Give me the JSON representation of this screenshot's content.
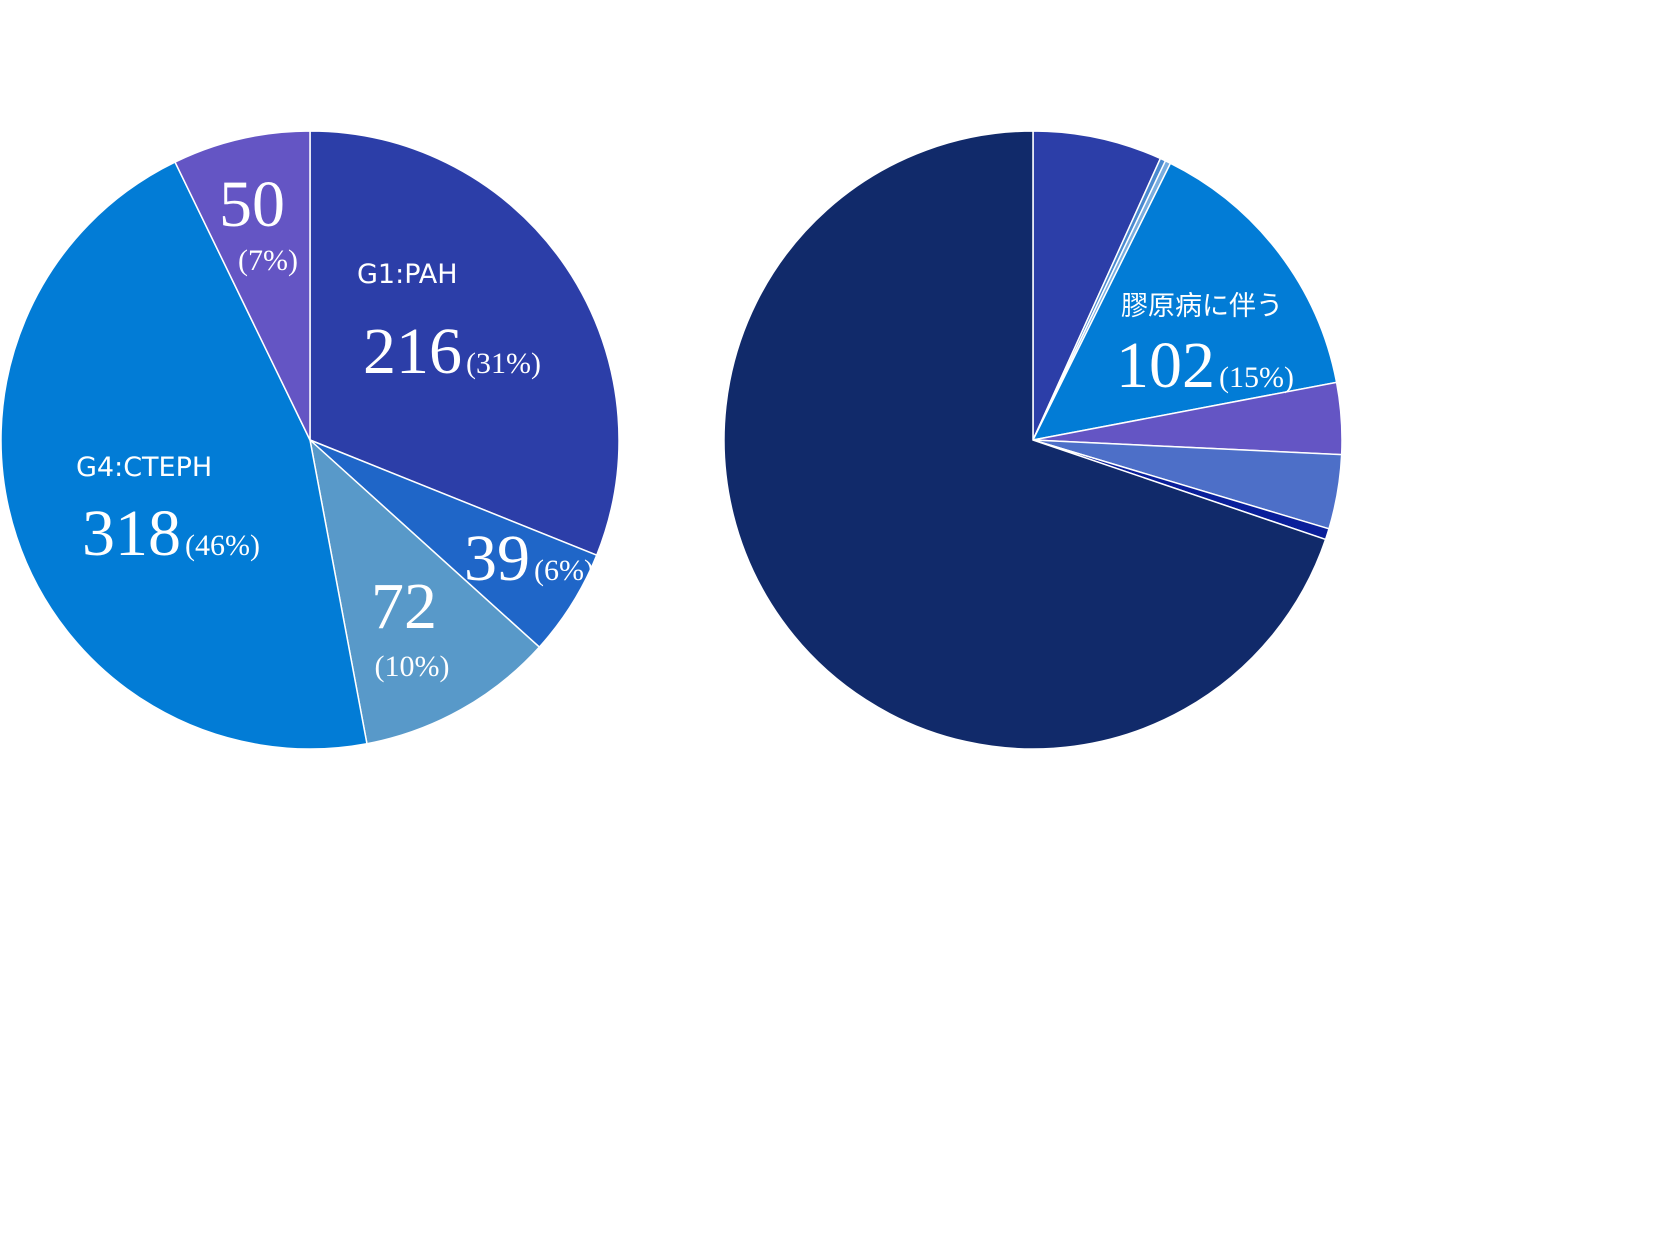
{
  "chart_data": [
    {
      "type": "pie",
      "categories": [
        "G1:PAH",
        null,
        null,
        "G4:CTEPH",
        null
      ],
      "values": [
        216,
        39,
        72,
        318,
        50
      ],
      "percent_labels": [
        "(31%)",
        "(6%)",
        "(10%)",
        "(46%)",
        "(7%)"
      ],
      "colors": [
        "#2c3ea8",
        "#1f66c8",
        "#5899c9",
        "#027cd6",
        "#6455c4"
      ]
    },
    {
      "type": "pie",
      "categories": [
        null,
        null,
        null,
        "膠原病に伴う",
        null,
        null,
        null,
        null
      ],
      "values": [
        47,
        2,
        2,
        102,
        26,
        27,
        4,
        485
      ],
      "percent_labels": [
        null,
        null,
        null,
        "(15%)",
        null,
        null,
        null,
        null
      ],
      "colors": [
        "#2c3ea8",
        "#4a8ad0",
        "#7aaee0",
        "#027cd6",
        "#6455c4",
        "#4d6fc8",
        "#0a1f9a",
        "#112a6a"
      ]
    }
  ]
}
